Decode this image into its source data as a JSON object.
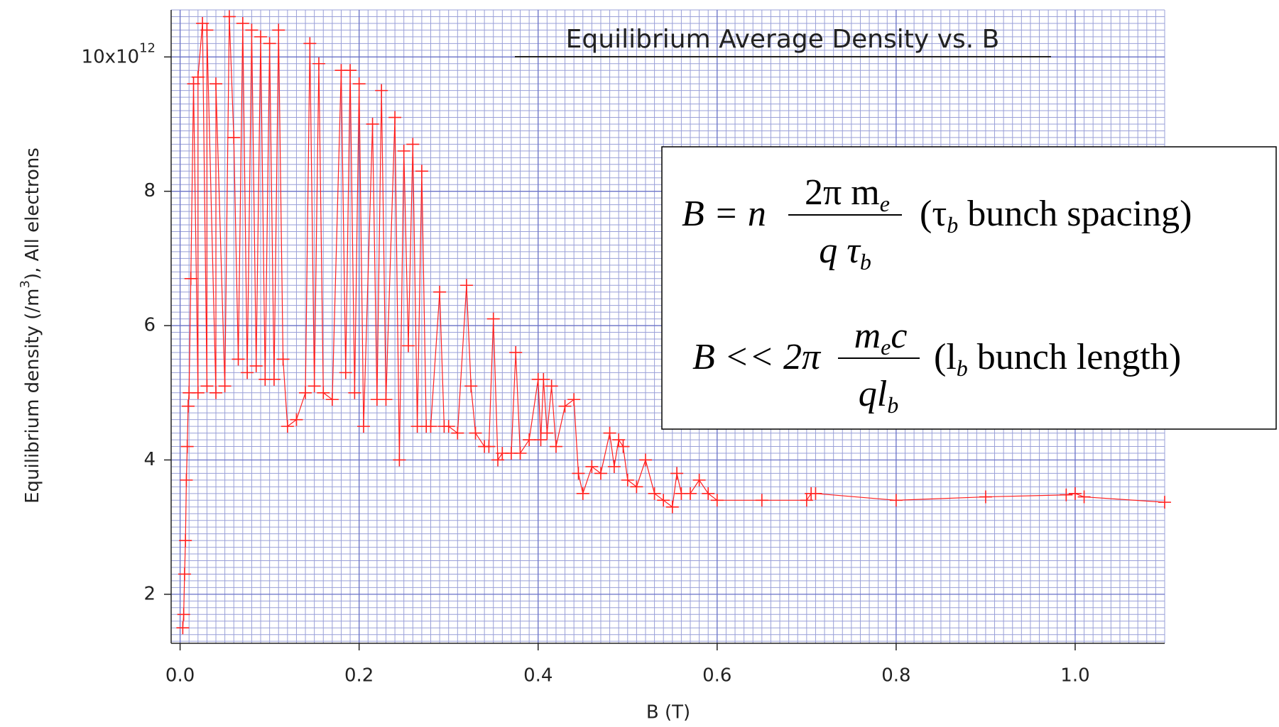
{
  "chart_data": {
    "type": "line",
    "title": "Equilibrium Average Density vs. B",
    "xlabel": "B (T)",
    "ylabel": {
      "pre": "Equilibrium density (/m",
      "sup": "3",
      "post": "), All electrons"
    },
    "xlim": [
      -0.01,
      1.1
    ],
    "ylim": [
      1.27,
      10.7
    ],
    "xticks": [
      {
        "value": 0,
        "label": "0.0"
      },
      0.2,
      0.4,
      0.6,
      0.8,
      {
        "value": 1,
        "label": "1.0"
      }
    ],
    "yticks": [
      2,
      4,
      6,
      8,
      {
        "value": 10,
        "label": "10x10",
        "label_sup": "12"
      }
    ],
    "grid": true,
    "minor_grid_divisions": [
      20,
      20
    ],
    "series": [
      {
        "name": "All electrons",
        "color": "#ff2020",
        "x": [
          0.003,
          0.004,
          0.005,
          0.006,
          0.007,
          0.008,
          0.009,
          0.01,
          0.012,
          0.015,
          0.02,
          0.02,
          0.025,
          0.03,
          0.03,
          0.04,
          0.04,
          0.05,
          0.055,
          0.06,
          0.065,
          0.07,
          0.075,
          0.08,
          0.085,
          0.09,
          0.095,
          0.1,
          0.105,
          0.11,
          0.115,
          0.12,
          0.13,
          0.14,
          0.145,
          0.15,
          0.155,
          0.16,
          0.17,
          0.18,
          0.185,
          0.19,
          0.195,
          0.2,
          0.205,
          0.215,
          0.22,
          0.225,
          0.23,
          0.24,
          0.245,
          0.25,
          0.255,
          0.26,
          0.265,
          0.27,
          0.275,
          0.28,
          0.29,
          0.295,
          0.3,
          0.31,
          0.32,
          0.325,
          0.33,
          0.34,
          0.345,
          0.35,
          0.355,
          0.36,
          0.37,
          0.375,
          0.38,
          0.39,
          0.4,
          0.403,
          0.406,
          0.41,
          0.415,
          0.42,
          0.43,
          0.44,
          0.445,
          0.45,
          0.46,
          0.47,
          0.48,
          0.485,
          0.49,
          0.495,
          0.5,
          0.51,
          0.52,
          0.53,
          0.54,
          0.55,
          0.555,
          0.56,
          0.57,
          0.58,
          0.59,
          0.6,
          0.65,
          0.7,
          0.705,
          0.71,
          0.8,
          0.9,
          0.99,
          1.0,
          1.01,
          1.1
        ],
        "values": [
          1.5,
          1.7,
          2.3,
          2.8,
          3.7,
          4.2,
          4.8,
          5.0,
          6.7,
          9.6,
          5.0,
          9.7,
          10.5,
          5.1,
          10.4,
          5.0,
          9.6,
          5.1,
          10.6,
          8.8,
          5.5,
          10.5,
          5.3,
          10.4,
          5.4,
          10.3,
          5.2,
          10.2,
          5.2,
          10.4,
          5.5,
          4.5,
          4.6,
          5.0,
          10.2,
          5.1,
          9.9,
          5.0,
          4.9,
          9.8,
          5.3,
          9.8,
          5.0,
          9.6,
          4.5,
          9.0,
          4.9,
          9.5,
          4.9,
          9.1,
          4.0,
          8.6,
          5.7,
          8.7,
          4.5,
          8.3,
          4.5,
          4.5,
          6.5,
          4.5,
          4.5,
          4.4,
          6.6,
          5.1,
          4.4,
          4.2,
          4.2,
          6.1,
          4.0,
          4.1,
          4.1,
          5.6,
          4.1,
          4.3,
          5.2,
          4.3,
          5.2,
          4.4,
          5.1,
          4.2,
          4.8,
          4.9,
          3.8,
          3.5,
          3.9,
          3.8,
          4.4,
          3.9,
          4.3,
          4.2,
          3.7,
          3.6,
          4.0,
          3.5,
          3.4,
          3.3,
          3.8,
          3.5,
          3.5,
          3.7,
          3.5,
          3.4,
          3.4,
          3.4,
          3.5,
          3.5,
          3.4,
          3.45,
          3.48,
          3.5,
          3.45,
          3.37
        ]
      }
    ],
    "annotations": {
      "eq1": {
        "lhs": "B = n",
        "num": "2π m",
        "num_sub": "e",
        "den": "q τ",
        "den_sub": "b",
        "note_pre": "(τ",
        "note_sub": "b",
        "note_post": " bunch spacing)"
      },
      "eq2": {
        "lhs": "B << 2π",
        "num": "m",
        "num_sub": "e",
        "num_post": "c",
        "den": "ql",
        "den_sub": "b",
        "note_pre": "(l",
        "note_sub": "b",
        "note_post": " bunch length)"
      }
    }
  }
}
